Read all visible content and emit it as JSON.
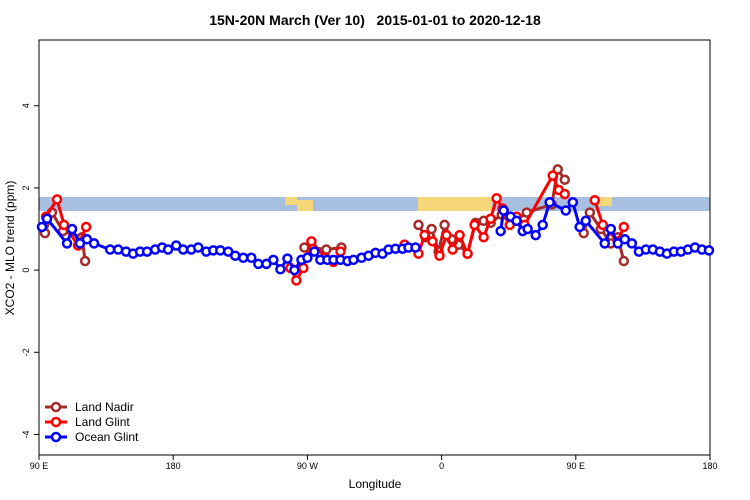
{
  "chart_data": {
    "type": "line",
    "title": "15N-20N March (Ver 10)   2015-01-01 to 2020-12-18",
    "x_label": "Longitude",
    "y_label": "XCO2 - MLO trend (ppm)",
    "xlim": [
      90,
      540
    ],
    "xticks": [
      {
        "value": 90,
        "label": "90 E"
      },
      180,
      {
        "value": 270,
        "label": "90 W"
      },
      {
        "value": 360,
        "label": "0"
      },
      {
        "value": 450,
        "label": "90 E"
      },
      {
        "value": 540,
        "label": "180"
      }
    ],
    "ylim": [
      -4.5,
      5.6
    ],
    "yticks": [
      -4,
      -2,
      0,
      2,
      4
    ],
    "legend": "bottom-left",
    "series": [
      {
        "name": "Land Nadir",
        "color": "#a52a2a",
        "x": [
          94.0,
          98.7,
          106.1,
          118.9,
          120.9,
          null,
          268.0,
          273.3,
          282.7,
          292.8,
          null,
          344.5,
          349.2,
          353.3,
          358.0,
          362.0,
          366.7,
          371.4,
          377.4,
          382.8,
          388.2,
          392.9,
          400.3,
          405.0,
          409.7,
          417.1,
          433.9,
          437.9,
          442.6,
          null,
          455.3,
          459.4,
          466.8,
          473.5,
          478.2,
          482.2
        ],
        "values": [
          0.9,
          1.4,
          0.95,
          0.8,
          0.22,
          null,
          0.55,
          0.55,
          0.5,
          0.55,
          null,
          1.1,
          0.8,
          1.0,
          0.45,
          1.1,
          0.75,
          0.62,
          0.4,
          1.15,
          1.2,
          1.15,
          1.35,
          1.3,
          1.2,
          1.4,
          1.6,
          2.45,
          2.2,
          null,
          0.9,
          1.4,
          1.0,
          0.65,
          0.8,
          0.22
        ]
      },
      {
        "name": "Land Glint",
        "color": "#ff0000",
        "x": [
          94.7,
          102.1,
          106.8,
          116.2,
          121.6,
          null,
          258.6,
          262.6,
          267.3,
          272.7,
          282.1,
          287.5,
          292.2,
          null,
          335.1,
          344.5,
          348.6,
          353.9,
          358.6,
          363.3,
          367.4,
          372.1,
          377.4,
          382.1,
          388.2,
          392.9,
          396.9,
          400.9,
          405.7,
          410.3,
          415.7,
          434.5,
          438.6,
          442.6,
          null,
          462.7,
          468.1,
          478.2,
          482.2
        ],
        "values": [
          1.3,
          1.72,
          1.1,
          0.6,
          1.05,
          null,
          0.05,
          -0.25,
          0.05,
          0.7,
          0.3,
          0.2,
          0.45,
          null,
          0.62,
          0.4,
          0.85,
          0.7,
          0.35,
          0.85,
          0.5,
          0.85,
          0.4,
          1.1,
          0.8,
          1.25,
          1.75,
          1.5,
          1.1,
          1.3,
          1.1,
          2.3,
          1.95,
          1.85,
          null,
          1.7,
          1.1,
          0.7,
          1.05
        ]
      },
      {
        "name": "Ocean Glint",
        "color": "#0000ff",
        "x": [
          92.0,
          95.4,
          108.8,
          112.2,
          117.5,
          122.2,
          126.9,
          137.7,
          143.1,
          148.4,
          153.1,
          157.8,
          162.5,
          167.9,
          172.6,
          176.6,
          182.0,
          186.7,
          192.1,
          196.8,
          202.2,
          206.9,
          211.6,
          216.9,
          221.6,
          227.0,
          232.4,
          237.1,
          242.5,
          247.2,
          251.9,
          256.6,
          261.3,
          266.0,
          270.0,
          274.7,
          278.7,
          283.4,
          287.5,
          292.2,
          296.9,
          300.9,
          306.3,
          311.0,
          315.7,
          320.4,
          324.4,
          329.1,
          333.8,
          337.8,
          342.5,
          null,
          399.6,
          401.6,
          406.3,
          410.3,
          414.4,
          417.7,
          423.1,
          427.8,
          432.5,
          443.3,
          448.0,
          452.6,
          456.7,
          469.4,
          473.5,
          478.2,
          482.9,
          487.6,
          492.3,
          497.0,
          501.7,
          506.4,
          511.1,
          515.8,
          520.5,
          525.2,
          529.9,
          534.6,
          539.3
        ],
        "values": [
          1.05,
          1.25,
          0.65,
          1.0,
          0.65,
          0.75,
          0.65,
          0.5,
          0.5,
          0.45,
          0.4,
          0.45,
          0.45,
          0.5,
          0.55,
          0.5,
          0.6,
          0.5,
          0.5,
          0.55,
          0.45,
          0.48,
          0.48,
          0.45,
          0.35,
          0.3,
          0.3,
          0.15,
          0.15,
          0.25,
          0.02,
          0.28,
          0.0,
          0.25,
          0.3,
          0.45,
          0.25,
          0.25,
          0.25,
          0.25,
          0.22,
          0.25,
          0.3,
          0.35,
          0.42,
          0.4,
          0.5,
          0.52,
          0.52,
          0.55,
          0.55,
          null,
          0.95,
          1.45,
          1.3,
          1.2,
          0.95,
          1.0,
          0.85,
          1.1,
          1.65,
          1.45,
          1.65,
          1.05,
          1.2,
          0.65,
          1.0,
          0.65,
          0.75,
          0.65,
          0.45,
          0.5,
          0.5,
          0.45,
          0.4,
          0.45,
          0.45,
          0.5,
          0.55,
          0.5,
          0.48
        ]
      }
    ]
  }
}
